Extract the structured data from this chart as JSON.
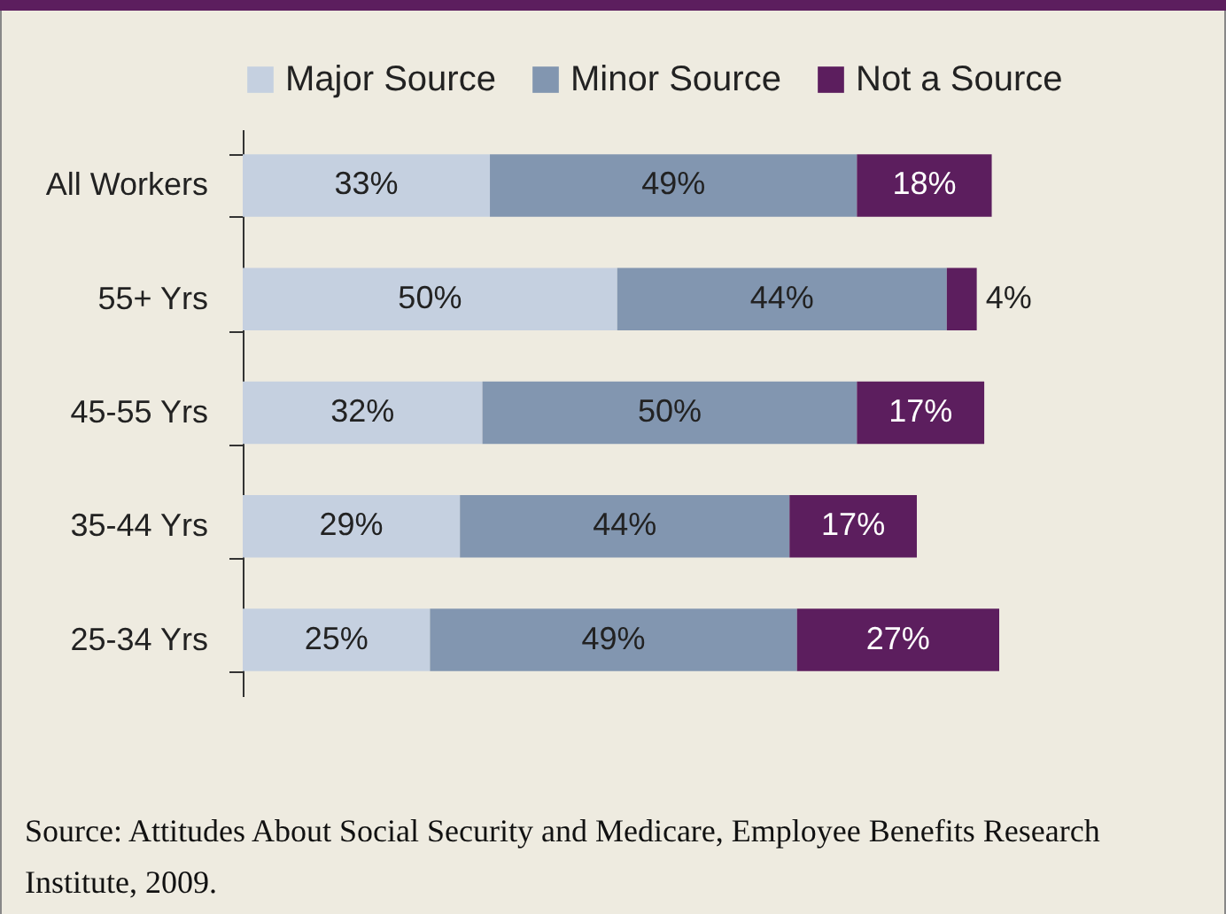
{
  "chart_data": {
    "type": "bar",
    "orientation": "horizontal",
    "stacked": true,
    "legend": "top",
    "categories": [
      "All Workers",
      "55+ Yrs",
      "45-55 Yrs",
      "35-44 Yrs",
      "25-34 Yrs"
    ],
    "series": [
      {
        "name": "Major Source",
        "color": "#c5d0e0",
        "values": [
          33,
          50,
          32,
          29,
          25
        ],
        "value_labels": [
          "33%",
          "50%",
          "32%",
          "29%",
          "25%"
        ]
      },
      {
        "name": "Minor Source",
        "color": "#8296b0",
        "values": [
          49,
          44,
          50,
          44,
          49
        ],
        "value_labels": [
          "49%",
          "44%",
          "50%",
          "44%",
          "49%"
        ]
      },
      {
        "name": "Not a Source",
        "color": "#5c1e5e",
        "values": [
          18,
          4,
          17,
          17,
          27
        ],
        "value_labels": [
          "18%",
          "4%",
          "17%",
          "17%",
          "27%"
        ]
      }
    ],
    "annotations": [
      "Source: Attitudes About Social Security and Medicare, Employee Benefits Research Institute, 2009."
    ]
  }
}
